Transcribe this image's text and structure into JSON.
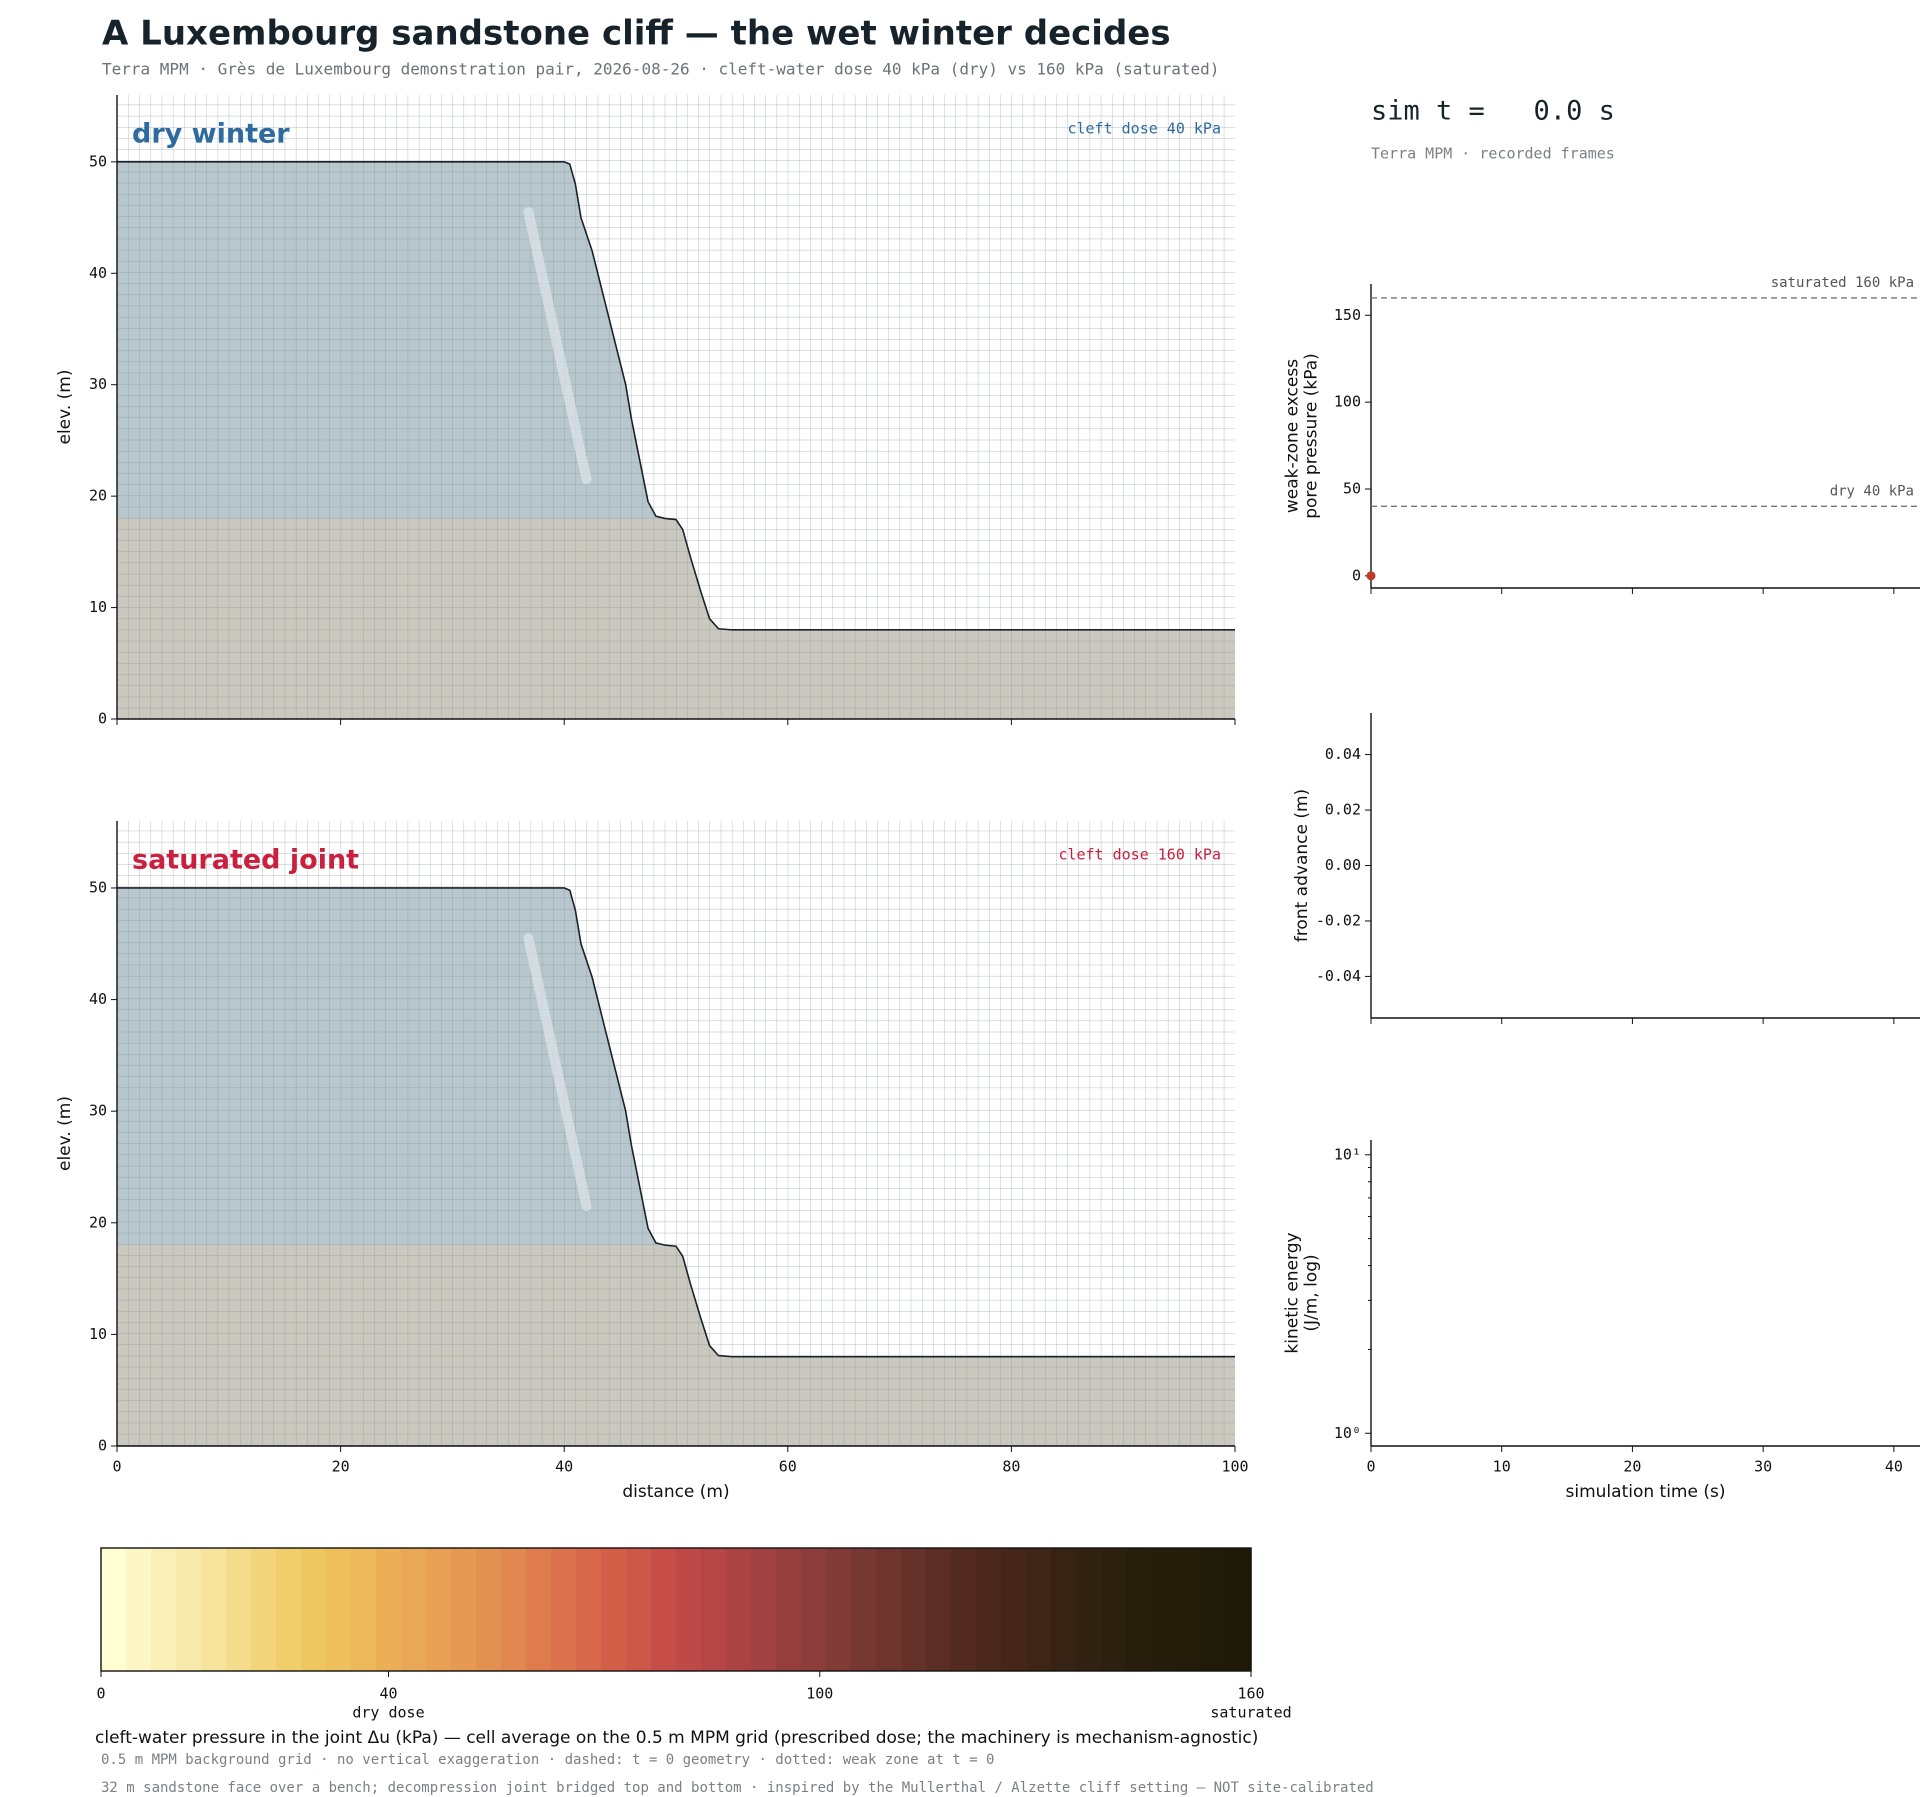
{
  "header": {
    "title": "A Luxembourg sandstone cliff — the wet winter decides",
    "subtitle": "Terra MPM · Grès de Luxembourg demonstration pair, 2026-08-26 · cleft-water dose 40 kPa (dry) vs 160 kPa (saturated)"
  },
  "clock": {
    "text": "sim t =   0.0 s",
    "caption": "Terra MPM · recorded frames"
  },
  "footer_notes": [
    "0.5 m MPM background grid · no vertical exaggeration · dashed: t = 0 geometry · dotted: weak zone at t = 0",
    "32 m sandstone face over a bench; decompression joint bridged top and bottom · inspired by the Mullerthal / Alzette cliff setting — NOT site-calibrated"
  ],
  "chart_data": [
    {
      "type": "section",
      "title": "dry winter",
      "annotation": "cleft dose 40 kPa",
      "title_color": "#2e6a9e",
      "ylabel": "elev. (m)",
      "xlim": [
        0,
        100
      ],
      "ylim": [
        0,
        56
      ],
      "xticks": [
        0,
        20,
        40,
        60,
        80,
        100
      ],
      "yticks": [
        0,
        10,
        20,
        30,
        40,
        50
      ],
      "xtick_labels": false,
      "rock_color": "#b8c6cd",
      "bench_color": "#cbc9bf",
      "bench_elevation": 18,
      "surface": {
        "x": [
          0,
          40,
          40.5,
          41,
          41.5,
          42.5,
          43.5,
          44.5,
          45.5,
          46,
          46.8,
          47.5,
          48.2,
          49,
          50,
          50.6,
          51.3,
          52.2,
          53,
          53.8,
          55,
          100
        ],
        "y": [
          50,
          50,
          49.8,
          48,
          45,
          42,
          38,
          34,
          30,
          27,
          23,
          19.5,
          18.2,
          18,
          17.9,
          17,
          14.5,
          11.5,
          9,
          8.1,
          8,
          8
        ]
      },
      "weak_zone": {
        "x": [
          36.8,
          42.0
        ],
        "y": [
          45.5,
          21.5
        ]
      }
    },
    {
      "type": "section",
      "title": "saturated joint",
      "annotation": "cleft dose 160 kPa",
      "title_color": "#c8203e",
      "ylabel": "elev. (m)",
      "xlabel": "distance (m)",
      "xlim": [
        0,
        100
      ],
      "ylim": [
        0,
        56
      ],
      "xticks": [
        0,
        20,
        40,
        60,
        80,
        100
      ],
      "yticks": [
        0,
        10,
        20,
        30,
        40,
        50
      ],
      "rock_color": "#b8c6cd",
      "bench_color": "#cbc9bf",
      "bench_elevation": 18,
      "surface": {
        "x": [
          0,
          40,
          40.5,
          41,
          41.5,
          42.5,
          43.5,
          44.5,
          45.5,
          46,
          46.8,
          47.5,
          48.2,
          49,
          50,
          50.6,
          51.3,
          52.2,
          53,
          53.8,
          55,
          100
        ],
        "y": [
          50,
          50,
          49.8,
          48,
          45,
          42,
          38,
          34,
          30,
          27,
          23,
          19.5,
          18.2,
          18,
          17.9,
          17,
          14.5,
          11.5,
          9,
          8.1,
          8,
          8
        ]
      },
      "weak_zone": {
        "x": [
          36.8,
          42.0
        ],
        "y": [
          45.5,
          21.5
        ]
      }
    },
    {
      "type": "line",
      "ylabel": [
        "weak-zone excess",
        "pore pressure (kPa)"
      ],
      "xlim": [
        0,
        42
      ],
      "ylim": [
        -7,
        168
      ],
      "xticks": [
        0,
        10,
        20,
        30,
        40
      ],
      "yticks": [
        0,
        50,
        100,
        150
      ],
      "xtick_labels": false,
      "ref_lines": [
        {
          "value": 160,
          "label": "saturated 160 kPa"
        },
        {
          "value": 40,
          "label": "dry 40 kPa"
        }
      ],
      "series": [
        {
          "color": "#c0392b",
          "x": [
            0
          ],
          "values": [
            0
          ]
        }
      ]
    },
    {
      "type": "line",
      "ylabel": "front advance (m)",
      "xlim": [
        0,
        42
      ],
      "ylim": [
        -0.055,
        0.055
      ],
      "xticks": [
        0,
        10,
        20,
        30,
        40
      ],
      "yticks": [
        -0.04,
        -0.02,
        {
          "value": 0,
          "label": "0.00"
        },
        0.02,
        0.04
      ],
      "xtick_labels": false,
      "series": []
    },
    {
      "type": "line",
      "ylabel": [
        "kinetic energy",
        "(J/m, log)"
      ],
      "xlabel": "simulation time (s)",
      "xlim": [
        0,
        42
      ],
      "ylim": [
        0.9,
        11.3
      ],
      "ylog": true,
      "xticks": [
        0,
        10,
        20,
        30,
        40
      ],
      "yticks": [
        {
          "value": 1,
          "label": "10⁰"
        },
        {
          "value": 10,
          "label": "10¹"
        }
      ],
      "yminorticks": [
        2,
        3,
        4,
        5,
        6,
        7,
        8,
        9
      ],
      "series": []
    },
    {
      "type": "colorbar",
      "label": "cleft-water pressure in the joint Δu (kPa) — cell average on the 0.5 m MPM grid (prescribed dose; the machinery is mechanism-agnostic)",
      "xlim": [
        0,
        160
      ],
      "xticks": [
        0,
        40,
        100,
        160
      ],
      "annotations": [
        {
          "value": 40,
          "text": "dry dose"
        },
        {
          "value": 160,
          "text": "saturated"
        }
      ],
      "colors": [
        "#fffdd2",
        "#f6e5a0",
        "#f0cb62",
        "#ebae56",
        "#e39151",
        "#da6a4a",
        "#c44a48",
        "#9e4040",
        "#773833",
        "#552a20",
        "#3a2415",
        "#261e0b",
        "#1e1a07"
      ]
    }
  ]
}
